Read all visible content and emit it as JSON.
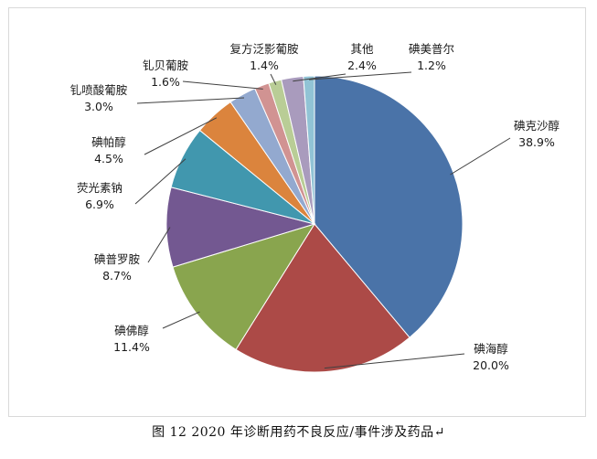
{
  "caption": "图 12   2020 年诊断用药不良反应/事件涉及药品↵",
  "chart_data": {
    "type": "pie",
    "start_angle_deg": 90,
    "direction": "clockwise",
    "slices": [
      {
        "label": "碘克沙醇",
        "value": 38.9,
        "value_label": "38.9%",
        "color": "#4A73A8"
      },
      {
        "label": "碘海醇",
        "value": 20.0,
        "value_label": "20.0%",
        "color": "#AC4A47"
      },
      {
        "label": "碘佛醇",
        "value": 11.4,
        "value_label": "11.4%",
        "color": "#89A54E"
      },
      {
        "label": "碘普罗胺",
        "value": 8.7,
        "value_label": "8.7%",
        "color": "#735891"
      },
      {
        "label": "荧光素钠",
        "value": 6.9,
        "value_label": "6.9%",
        "color": "#4197AE"
      },
      {
        "label": "碘帕醇",
        "value": 4.5,
        "value_label": "4.5%",
        "color": "#DB843D"
      },
      {
        "label": "钆喷酸葡胺",
        "value": 3.0,
        "value_label": "3.0%",
        "color": "#93A9CF"
      },
      {
        "label": "钆贝葡胺",
        "value": 1.6,
        "value_label": "1.6%",
        "color": "#D19392"
      },
      {
        "label": "复方泛影葡胺",
        "value": 1.4,
        "value_label": "1.4%",
        "color": "#B9CD96"
      },
      {
        "label": "其他",
        "value": 2.4,
        "value_label": "2.4%",
        "color": "#A99BBD"
      },
      {
        "label": "碘美普尔",
        "value": 1.2,
        "value_label": "1.2%",
        "color": "#91C3D5"
      }
    ]
  }
}
